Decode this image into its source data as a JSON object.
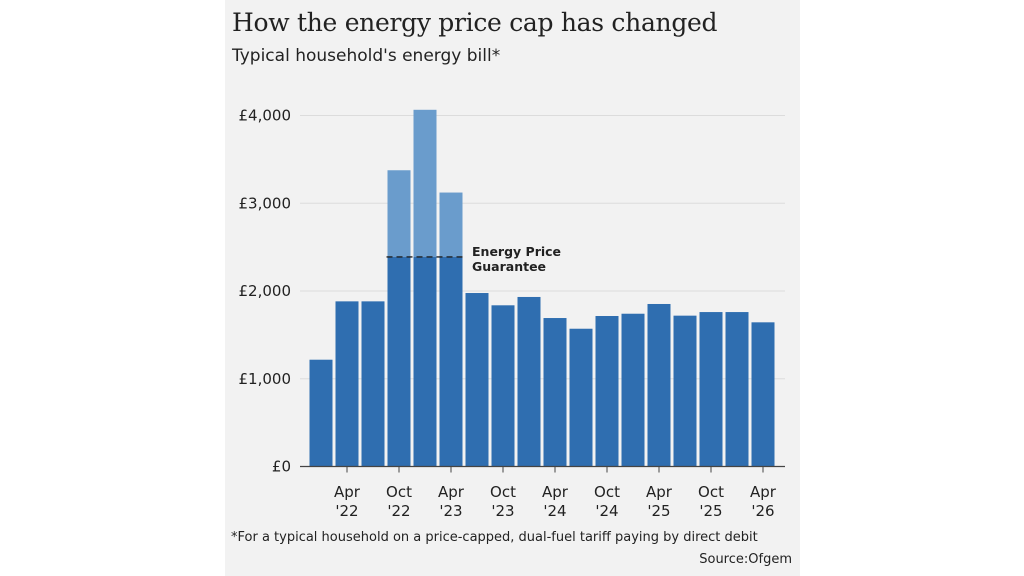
{
  "title": "How the energy price cap has changed",
  "subtitle": "Typical household's energy bill*",
  "footnote": "*For a typical household on a price-capped, dual-fuel tariff paying by direct debit",
  "source": "Source:Ofgem",
  "colors": {
    "bar": "#2f6eb0",
    "bar_above_guarantee": "#6a9ccc",
    "grid": "#dcdcdc",
    "background": "#f2f2f2"
  },
  "chart_data": {
    "type": "bar",
    "title": "How the energy price cap has changed",
    "subtitle": "Typical household's energy bill*",
    "values": [
      1217,
      1882,
      1882,
      3376,
      4065,
      3122,
      1977,
      1837,
      1932,
      1692,
      1570,
      1715,
      1741,
      1852,
      1719,
      1760,
      1760,
      1643
    ],
    "tick_labels": [
      {
        "bar_index": 1,
        "line1": "Apr",
        "line2": "'22"
      },
      {
        "bar_index": 3,
        "line1": "Oct",
        "line2": "'22"
      },
      {
        "bar_index": 5,
        "line1": "Apr",
        "line2": "'23"
      },
      {
        "bar_index": 7,
        "line1": "Oct",
        "line2": "'23"
      },
      {
        "bar_index": 9,
        "line1": "Apr",
        "line2": "'24"
      },
      {
        "bar_index": 11,
        "line1": "Oct",
        "line2": "'24"
      },
      {
        "bar_index": 13,
        "line1": "Apr",
        "line2": "'25"
      },
      {
        "bar_index": 15,
        "line1": "Oct",
        "line2": "'25"
      },
      {
        "bar_index": 17,
        "line1": "Apr",
        "line2": "'26"
      }
    ],
    "yticks": [
      0,
      1000,
      2000,
      3000,
      4000
    ],
    "ytick_labels": [
      "£0",
      "£1,000",
      "£2,000",
      "£3,000",
      "£4,000"
    ],
    "ylim": [
      0,
      4000
    ],
    "grid": true,
    "annotation": {
      "line1": "Energy Price",
      "line2": "Guarantee",
      "value": 2388,
      "bar_indices": [
        3,
        4,
        5
      ]
    },
    "xlabel": "",
    "ylabel": ""
  }
}
